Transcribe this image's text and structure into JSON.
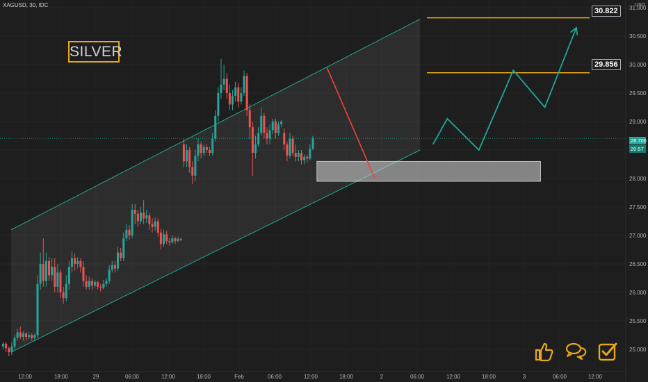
{
  "symbol_line": "XAGUSD, 30, IDC",
  "currency": "USD",
  "badge": "SILVER",
  "targets": {
    "upper": "30.822",
    "lower": "29.856"
  },
  "current_price": "28.706",
  "countdown": "20:57",
  "colors": {
    "background": "#1e1e1e",
    "up": "#26a69a",
    "down": "#ef5350",
    "target": "#e9a81c",
    "channel": "#1fa896",
    "trendline": "#f44336",
    "projection": "#1fa896",
    "zone": "#ffffff"
  },
  "icons": [
    "thumbs-up-icon",
    "comment-icon",
    "checkbox-icon"
  ],
  "chart_data": {
    "type": "candlestick",
    "ylim": [
      24.8,
      31.2
    ],
    "y_ticks": [
      "25.000",
      "25.500",
      "26.000",
      "26.500",
      "27.000",
      "27.500",
      "28.000",
      "28.500",
      "29.000",
      "29.500",
      "30.000",
      "30.500",
      "31.000"
    ],
    "x_ticks": [
      "12:00",
      "18:00",
      "29",
      "06:00",
      "12:00",
      "18:00",
      "Feb",
      "06:00",
      "12:00",
      "18:00",
      "2",
      "06:00",
      "12:00",
      "18:00",
      "3",
      "06:00",
      "12:00"
    ],
    "channel": {
      "lower": [
        [
          0,
          24.95
        ],
        [
          146,
          28.5
        ]
      ],
      "upper": [
        [
          0,
          27.1
        ],
        [
          146,
          30.8
        ]
      ]
    },
    "resistance_line": [
      [
        113,
        29.95
      ],
      [
        129,
        28.0
      ]
    ],
    "demand_zone": {
      "x": [
        110,
        188
      ],
      "y": [
        27.95,
        28.3
      ]
    },
    "target_levels": [
      30.822,
      29.856
    ],
    "projection_path": [
      [
        150,
        28.6
      ],
      [
        155,
        29.05
      ],
      [
        166,
        28.5
      ],
      [
        178,
        29.9
      ],
      [
        189,
        29.25
      ],
      [
        200,
        30.65
      ]
    ],
    "candles": [
      {
        "o": 25.05,
        "c": 25.1,
        "h": 25.13,
        "l": 25.0
      },
      {
        "o": 25.1,
        "c": 25.02,
        "h": 25.12,
        "l": 24.95
      },
      {
        "o": 25.02,
        "c": 24.95,
        "h": 25.05,
        "l": 24.88
      },
      {
        "o": 24.95,
        "c": 25.05,
        "h": 25.12,
        "l": 24.9
      },
      {
        "o": 25.05,
        "c": 25.2,
        "h": 25.25,
        "l": 25.0
      },
      {
        "o": 25.2,
        "c": 25.3,
        "h": 25.36,
        "l": 25.15
      },
      {
        "o": 25.3,
        "c": 25.22,
        "h": 25.4,
        "l": 25.18
      },
      {
        "o": 25.22,
        "c": 25.28,
        "h": 25.32,
        "l": 25.15
      },
      {
        "o": 25.28,
        "c": 25.22,
        "h": 25.3,
        "l": 25.15
      },
      {
        "o": 25.22,
        "c": 25.25,
        "h": 25.3,
        "l": 25.18
      },
      {
        "o": 25.25,
        "c": 25.2,
        "h": 25.28,
        "l": 25.15
      },
      {
        "o": 25.2,
        "c": 25.25,
        "h": 25.28,
        "l": 25.15
      },
      {
        "o": 25.25,
        "c": 26.15,
        "h": 26.3,
        "l": 25.2
      },
      {
        "o": 26.15,
        "c": 26.5,
        "h": 26.7,
        "l": 26.05
      },
      {
        "o": 26.5,
        "c": 26.2,
        "h": 26.95,
        "l": 26.1
      },
      {
        "o": 26.2,
        "c": 26.55,
        "h": 26.7,
        "l": 26.1
      },
      {
        "o": 26.55,
        "c": 26.3,
        "h": 26.62,
        "l": 26.2
      },
      {
        "o": 26.3,
        "c": 26.45,
        "h": 26.6,
        "l": 26.2
      },
      {
        "o": 26.45,
        "c": 26.1,
        "h": 26.6,
        "l": 26.0
      },
      {
        "o": 26.1,
        "c": 26.35,
        "h": 26.5,
        "l": 26.0
      },
      {
        "o": 26.35,
        "c": 26.0,
        "h": 26.4,
        "l": 25.9
      },
      {
        "o": 26.0,
        "c": 25.9,
        "h": 26.1,
        "l": 25.8
      },
      {
        "o": 25.9,
        "c": 26.15,
        "h": 26.3,
        "l": 25.85
      },
      {
        "o": 26.15,
        "c": 26.45,
        "h": 26.55,
        "l": 26.05
      },
      {
        "o": 26.45,
        "c": 26.6,
        "h": 26.72,
        "l": 26.35
      },
      {
        "o": 26.6,
        "c": 26.5,
        "h": 26.68,
        "l": 26.38
      },
      {
        "o": 26.5,
        "c": 26.55,
        "h": 26.62,
        "l": 26.42
      },
      {
        "o": 26.55,
        "c": 26.45,
        "h": 26.6,
        "l": 26.35
      },
      {
        "o": 26.45,
        "c": 26.2,
        "h": 26.55,
        "l": 26.1
      },
      {
        "o": 26.2,
        "c": 26.1,
        "h": 26.3,
        "l": 26.05
      },
      {
        "o": 26.1,
        "c": 26.2,
        "h": 26.28,
        "l": 26.05
      },
      {
        "o": 26.2,
        "c": 26.12,
        "h": 26.25,
        "l": 26.05
      },
      {
        "o": 26.12,
        "c": 26.18,
        "h": 26.22,
        "l": 26.08
      },
      {
        "o": 26.18,
        "c": 26.1,
        "h": 26.2,
        "l": 26.05
      },
      {
        "o": 26.1,
        "c": 26.08,
        "h": 26.15,
        "l": 26.02
      },
      {
        "o": 26.08,
        "c": 26.15,
        "h": 26.22,
        "l": 26.05
      },
      {
        "o": 26.15,
        "c": 26.2,
        "h": 26.25,
        "l": 26.1
      },
      {
        "o": 26.2,
        "c": 26.4,
        "h": 26.48,
        "l": 26.15
      },
      {
        "o": 26.4,
        "c": 26.48,
        "h": 26.55,
        "l": 26.35
      },
      {
        "o": 26.48,
        "c": 26.42,
        "h": 26.55,
        "l": 26.35
      },
      {
        "o": 26.42,
        "c": 26.7,
        "h": 26.8,
        "l": 26.38
      },
      {
        "o": 26.7,
        "c": 26.6,
        "h": 26.78,
        "l": 26.55
      },
      {
        "o": 26.6,
        "c": 26.95,
        "h": 27.05,
        "l": 26.55
      },
      {
        "o": 26.95,
        "c": 27.1,
        "h": 27.2,
        "l": 26.9
      },
      {
        "o": 27.1,
        "c": 27.0,
        "h": 27.18,
        "l": 26.92
      },
      {
        "o": 27.0,
        "c": 27.45,
        "h": 27.55,
        "l": 26.95
      },
      {
        "o": 27.45,
        "c": 27.38,
        "h": 27.55,
        "l": 27.2
      },
      {
        "o": 27.38,
        "c": 27.25,
        "h": 27.45,
        "l": 27.15
      },
      {
        "o": 27.25,
        "c": 27.4,
        "h": 27.5,
        "l": 27.2
      },
      {
        "o": 27.4,
        "c": 27.3,
        "h": 27.62,
        "l": 27.2
      },
      {
        "o": 27.3,
        "c": 27.35,
        "h": 27.45,
        "l": 27.22
      },
      {
        "o": 27.35,
        "c": 27.2,
        "h": 27.4,
        "l": 27.1
      },
      {
        "o": 27.2,
        "c": 27.15,
        "h": 27.3,
        "l": 27.05
      },
      {
        "o": 27.15,
        "c": 27.25,
        "h": 27.32,
        "l": 27.08
      },
      {
        "o": 27.25,
        "c": 27.05,
        "h": 27.3,
        "l": 26.98
      },
      {
        "o": 27.05,
        "c": 26.85,
        "h": 27.12,
        "l": 26.75
      },
      {
        "o": 26.85,
        "c": 27.02,
        "h": 27.1,
        "l": 26.8
      },
      {
        "o": 27.02,
        "c": 26.9,
        "h": 27.08,
        "l": 26.85
      },
      {
        "o": 26.9,
        "c": 26.88,
        "h": 26.95,
        "l": 26.82
      },
      {
        "o": 26.88,
        "c": 26.95,
        "h": 27.0,
        "l": 26.85
      },
      {
        "o": 26.95,
        "c": 26.9,
        "h": 26.98,
        "l": 26.85
      },
      {
        "o": 26.9,
        "c": 26.94,
        "h": 26.98,
        "l": 26.88
      },
      {
        "o": 26.94,
        "c": 26.92,
        "h": 26.96,
        "l": 26.9
      },
      {
        "o": 28.6,
        "c": 28.3,
        "h": 28.7,
        "l": 28.2
      },
      {
        "o": 28.3,
        "c": 28.5,
        "h": 28.6,
        "l": 28.2
      },
      {
        "o": 28.5,
        "c": 28.2,
        "h": 28.55,
        "l": 28.1
      },
      {
        "o": 28.2,
        "c": 28.05,
        "h": 28.3,
        "l": 27.9
      },
      {
        "o": 28.05,
        "c": 28.4,
        "h": 28.5,
        "l": 27.95
      },
      {
        "o": 28.4,
        "c": 28.6,
        "h": 28.7,
        "l": 28.3
      },
      {
        "o": 28.6,
        "c": 28.45,
        "h": 28.65,
        "l": 28.35
      },
      {
        "o": 28.45,
        "c": 28.55,
        "h": 28.6,
        "l": 28.4
      },
      {
        "o": 28.55,
        "c": 28.5,
        "h": 28.6,
        "l": 28.45
      },
      {
        "o": 28.5,
        "c": 28.45,
        "h": 28.55,
        "l": 28.4
      },
      {
        "o": 28.45,
        "c": 28.7,
        "h": 28.8,
        "l": 28.4
      },
      {
        "o": 28.7,
        "c": 29.1,
        "h": 29.2,
        "l": 28.65
      },
      {
        "o": 29.1,
        "c": 29.5,
        "h": 29.6,
        "l": 29.0
      },
      {
        "o": 29.5,
        "c": 29.65,
        "h": 30.1,
        "l": 29.4
      },
      {
        "o": 29.65,
        "c": 29.75,
        "h": 30.0,
        "l": 29.55
      },
      {
        "o": 29.75,
        "c": 29.5,
        "h": 29.85,
        "l": 29.4
      },
      {
        "o": 29.5,
        "c": 29.3,
        "h": 29.65,
        "l": 29.2
      },
      {
        "o": 29.3,
        "c": 29.45,
        "h": 29.55,
        "l": 29.2
      },
      {
        "o": 29.45,
        "c": 29.6,
        "h": 29.7,
        "l": 29.35
      },
      {
        "o": 29.6,
        "c": 29.35,
        "h": 29.68,
        "l": 29.25
      },
      {
        "o": 29.35,
        "c": 29.5,
        "h": 29.6,
        "l": 29.3
      },
      {
        "o": 29.5,
        "c": 29.8,
        "h": 29.9,
        "l": 29.45
      },
      {
        "o": 29.8,
        "c": 29.2,
        "h": 29.85,
        "l": 29.1
      },
      {
        "o": 29.2,
        "c": 28.9,
        "h": 29.3,
        "l": 28.7
      },
      {
        "o": 28.9,
        "c": 28.45,
        "h": 29.0,
        "l": 28.05
      },
      {
        "o": 28.45,
        "c": 28.6,
        "h": 28.75,
        "l": 28.35
      },
      {
        "o": 28.6,
        "c": 28.8,
        "h": 28.9,
        "l": 28.55
      },
      {
        "o": 28.8,
        "c": 29.1,
        "h": 29.25,
        "l": 28.75
      },
      {
        "o": 29.1,
        "c": 28.8,
        "h": 29.15,
        "l": 28.7
      },
      {
        "o": 28.8,
        "c": 28.7,
        "h": 28.9,
        "l": 28.6
      },
      {
        "o": 28.7,
        "c": 28.85,
        "h": 28.95,
        "l": 28.6
      },
      {
        "o": 28.85,
        "c": 29.0,
        "h": 29.05,
        "l": 28.78
      },
      {
        "o": 29.0,
        "c": 28.8,
        "h": 29.05,
        "l": 28.7
      },
      {
        "o": 28.8,
        "c": 28.95,
        "h": 29.0,
        "l": 28.75
      },
      {
        "o": 28.95,
        "c": 29.0,
        "h": 29.03,
        "l": 28.9
      },
      {
        "o": 28.8,
        "c": 28.6,
        "h": 28.88,
        "l": 28.5
      },
      {
        "o": 28.6,
        "c": 28.4,
        "h": 28.65,
        "l": 28.3
      },
      {
        "o": 28.4,
        "c": 28.7,
        "h": 28.8,
        "l": 28.35
      },
      {
        "o": 28.7,
        "c": 28.45,
        "h": 28.75,
        "l": 28.4
      },
      {
        "o": 28.45,
        "c": 28.38,
        "h": 28.6,
        "l": 28.3
      },
      {
        "o": 28.38,
        "c": 28.45,
        "h": 28.5,
        "l": 28.3
      },
      {
        "o": 28.45,
        "c": 28.32,
        "h": 28.5,
        "l": 28.25
      },
      {
        "o": 28.32,
        "c": 28.38,
        "h": 28.42,
        "l": 28.25
      },
      {
        "o": 28.38,
        "c": 28.35,
        "h": 28.42,
        "l": 28.28
      },
      {
        "o": 28.35,
        "c": 28.52,
        "h": 28.6,
        "l": 28.32
      },
      {
        "o": 28.52,
        "c": 28.706,
        "h": 28.75,
        "l": 28.5
      }
    ]
  }
}
